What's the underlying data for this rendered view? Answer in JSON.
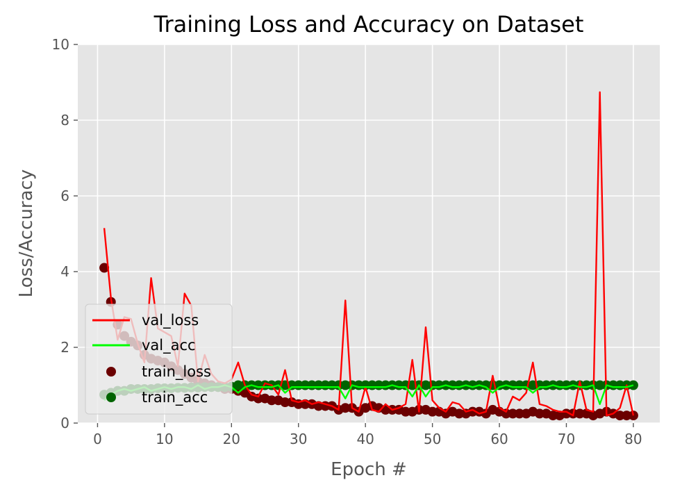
{
  "chart_data": {
    "type": "line",
    "title": "Training Loss and Accuracy on Dataset",
    "xlabel": "Epoch #",
    "ylabel": "Loss/Accuracy",
    "xlim": [
      -2.95,
      83.95
    ],
    "ylim": [
      0,
      10
    ],
    "xticks": [
      0,
      10,
      20,
      30,
      40,
      50,
      60,
      70,
      80
    ],
    "yticks": [
      0,
      2,
      4,
      6,
      8,
      10
    ],
    "grid": true,
    "legend_position": "lower-left",
    "x": [
      1,
      2,
      3,
      4,
      5,
      6,
      7,
      8,
      9,
      10,
      11,
      12,
      13,
      14,
      15,
      16,
      17,
      18,
      19,
      20,
      21,
      22,
      23,
      24,
      25,
      26,
      27,
      28,
      29,
      30,
      31,
      32,
      33,
      34,
      35,
      36,
      37,
      38,
      39,
      40,
      41,
      42,
      43,
      44,
      45,
      46,
      47,
      48,
      49,
      50,
      51,
      52,
      53,
      54,
      55,
      56,
      57,
      58,
      59,
      60,
      61,
      62,
      63,
      64,
      65,
      66,
      67,
      68,
      69,
      70,
      71,
      72,
      73,
      74,
      75,
      76,
      77,
      78,
      79,
      80
    ],
    "series": [
      {
        "name": "val_loss",
        "style": "line",
        "color": "#ff0000",
        "values": [
          5.15,
          3.3,
          2.2,
          2.8,
          2.75,
          2.1,
          1.6,
          3.83,
          2.5,
          2.4,
          2.3,
          1.5,
          3.42,
          3.1,
          1.1,
          1.8,
          1.3,
          1.1,
          1.05,
          1.15,
          1.6,
          1.0,
          0.75,
          0.7,
          1.05,
          1.0,
          0.75,
          1.4,
          0.6,
          0.55,
          0.6,
          0.5,
          0.55,
          0.5,
          0.45,
          0.35,
          3.24,
          0.4,
          0.3,
          0.95,
          0.35,
          0.3,
          0.5,
          0.35,
          0.4,
          0.5,
          1.67,
          0.3,
          2.53,
          0.6,
          0.4,
          0.3,
          0.55,
          0.5,
          0.3,
          0.35,
          0.25,
          0.3,
          1.25,
          0.4,
          0.3,
          0.7,
          0.6,
          0.8,
          1.6,
          0.5,
          0.45,
          0.35,
          0.3,
          0.3,
          0.2,
          1.1,
          0.35,
          0.3,
          8.74,
          0.2,
          0.25,
          0.4,
          1.0,
          0.2
        ]
      },
      {
        "name": "val_acc",
        "style": "line",
        "color": "#00ff00",
        "values": [
          0.6,
          0.75,
          0.85,
          0.9,
          0.85,
          0.9,
          0.95,
          0.85,
          0.9,
          0.95,
          0.9,
          0.95,
          0.95,
          0.9,
          1.0,
          0.9,
          0.95,
          0.95,
          1.0,
          0.95,
          0.8,
          0.95,
          1.0,
          0.95,
          0.95,
          0.95,
          1.0,
          0.8,
          0.95,
          0.95,
          0.95,
          0.95,
          0.95,
          0.95,
          0.95,
          0.95,
          0.65,
          1.0,
          0.95,
          0.95,
          0.95,
          0.95,
          0.95,
          1.0,
          0.95,
          0.95,
          0.7,
          1.0,
          0.7,
          0.95,
          0.95,
          1.0,
          0.95,
          0.95,
          1.0,
          0.95,
          1.0,
          0.95,
          0.8,
          0.95,
          1.0,
          0.95,
          0.95,
          0.95,
          0.8,
          0.95,
          0.95,
          1.0,
          0.95,
          0.95,
          1.0,
          0.95,
          0.95,
          1.0,
          0.5,
          1.0,
          0.95,
          0.95,
          0.95,
          1.0
        ]
      },
      {
        "name": "train_loss",
        "style": "scatter",
        "color": "#6b0000",
        "values": [
          4.1,
          3.2,
          2.6,
          2.3,
          2.15,
          2.05,
          1.8,
          1.7,
          1.65,
          1.6,
          1.5,
          1.4,
          1.3,
          1.2,
          1.1,
          1.05,
          1.0,
          0.95,
          0.9,
          0.9,
          0.85,
          0.8,
          0.7,
          0.65,
          0.65,
          0.6,
          0.6,
          0.55,
          0.55,
          0.5,
          0.5,
          0.5,
          0.45,
          0.45,
          0.45,
          0.35,
          0.4,
          0.4,
          0.3,
          0.4,
          0.45,
          0.4,
          0.35,
          0.35,
          0.35,
          0.3,
          0.3,
          0.35,
          0.35,
          0.3,
          0.3,
          0.25,
          0.3,
          0.25,
          0.25,
          0.3,
          0.3,
          0.25,
          0.35,
          0.3,
          0.25,
          0.25,
          0.25,
          0.25,
          0.3,
          0.25,
          0.25,
          0.2,
          0.2,
          0.25,
          0.25,
          0.25,
          0.25,
          0.2,
          0.25,
          0.3,
          0.25,
          0.2,
          0.2,
          0.2
        ]
      },
      {
        "name": "train_acc",
        "style": "scatter",
        "color": "#006400",
        "values": [
          0.75,
          0.8,
          0.85,
          0.85,
          0.9,
          0.9,
          0.9,
          0.9,
          0.92,
          0.92,
          0.92,
          0.93,
          0.93,
          0.94,
          0.94,
          0.95,
          0.95,
          0.95,
          0.95,
          0.96,
          1.0,
          1.0,
          1.0,
          1.0,
          1.0,
          1.0,
          1.0,
          1.0,
          1.0,
          1.0,
          1.0,
          1.0,
          1.0,
          1.0,
          1.0,
          1.0,
          1.0,
          1.0,
          1.0,
          1.0,
          1.0,
          1.0,
          1.0,
          1.0,
          1.0,
          1.0,
          1.0,
          1.0,
          1.0,
          1.0,
          1.0,
          1.0,
          1.0,
          1.0,
          1.0,
          1.0,
          1.0,
          1.0,
          1.0,
          1.0,
          1.0,
          1.0,
          1.0,
          1.0,
          1.0,
          1.0,
          1.0,
          1.0,
          1.0,
          1.0,
          1.0,
          1.0,
          1.0,
          1.0,
          1.0,
          1.0,
          1.0,
          1.0,
          1.0,
          1.0
        ]
      }
    ],
    "legend": [
      "val_loss",
      "val_acc",
      "train_loss",
      "train_acc"
    ]
  }
}
